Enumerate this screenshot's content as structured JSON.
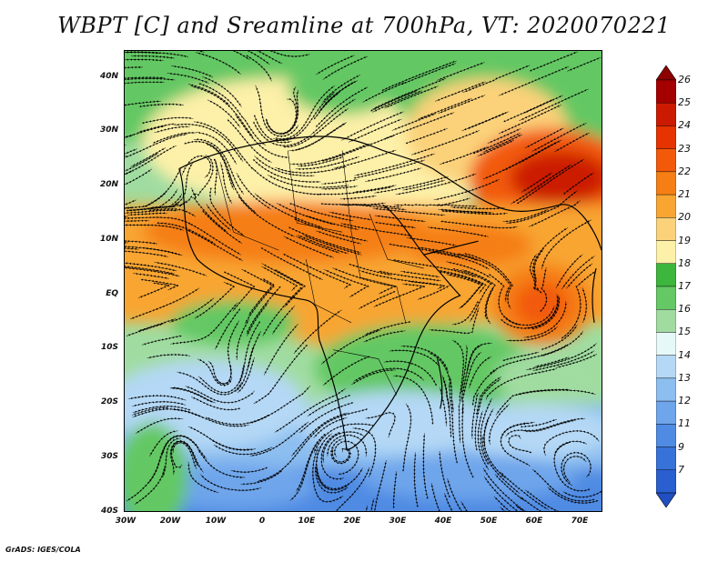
{
  "title": "WBPT [C] and Sreamline at 700hPa, VT: 2020070221",
  "credit": "GrADS: IGES/COLA",
  "axes": {
    "lat_labels": [
      "40N",
      "30N",
      "20N",
      "10N",
      "EQ",
      "10S",
      "20S",
      "30S",
      "40S"
    ],
    "lon_labels": [
      "30W",
      "20W",
      "10W",
      "0",
      "10E",
      "20E",
      "30E",
      "40E",
      "50E",
      "60E",
      "70E"
    ]
  },
  "colorbar": {
    "levels": [
      "26",
      "25",
      "24",
      "23",
      "22",
      "21",
      "20",
      "19",
      "18",
      "17",
      "16",
      "15",
      "14",
      "13",
      "12",
      "11",
      "9",
      "7"
    ],
    "colors": [
      "#a50000",
      "#cc1a00",
      "#e63300",
      "#f25a0a",
      "#f57f14",
      "#f8a531",
      "#fbd27a",
      "#fdf0a8",
      "#3cb63c",
      "#64c864",
      "#a0dca0",
      "#e6f8f8",
      "#b4d8f5",
      "#8cbef0",
      "#6ea5eb",
      "#4f8be3",
      "#3672d8",
      "#2a5fd0"
    ],
    "top_arrow_color": "#8c0000",
    "bottom_arrow_color": "#1f4fc0"
  }
}
